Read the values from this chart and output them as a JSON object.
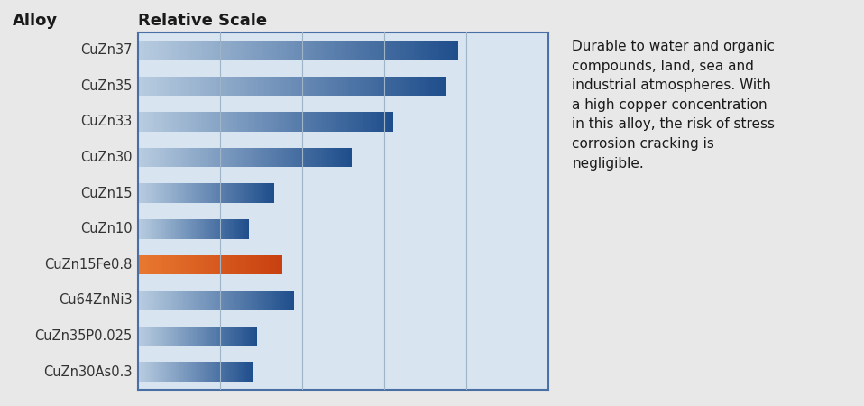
{
  "categories": [
    "CuZn37",
    "CuZn35",
    "CuZn33",
    "CuZn30",
    "CuZn15",
    "CuZn10",
    "CuZn15Fe0.8",
    "Cu64ZnNi3",
    "CuZn35P0.025",
    "CuZn30As0.3"
  ],
  "values": [
    78,
    75,
    62,
    52,
    33,
    27,
    35,
    38,
    29,
    28
  ],
  "bar_colors_left": [
    "#b8cce0",
    "#b8cce0",
    "#b8cce0",
    "#b8cce0",
    "#b8cce0",
    "#b8cce0",
    "#e87830",
    "#b8cce0",
    "#b8cce0",
    "#b8cce0"
  ],
  "bar_colors_right": [
    "#1f4e8c",
    "#1f4e8c",
    "#1f4e8c",
    "#1f4e8c",
    "#1f4e8c",
    "#1f4e8c",
    "#c84010",
    "#1f4e8c",
    "#1f4e8c",
    "#1f4e8c"
  ],
  "xlim": [
    0,
    100
  ],
  "x_gridlines": [
    20,
    40,
    60,
    80,
    100
  ],
  "background_color": "#d8e4ef",
  "outer_background": "#e8e8e8",
  "chart_border_color": "#4a6fa5",
  "alloy_label": "Alloy",
  "scale_label": "Relative Scale",
  "annotation": "Durable to water and organic\ncompounds, land, sea and\nindustrial atmospheres. With\na high copper concentration\nin this alloy, the risk of stress\ncorrosion cracking is\nnegligible.",
  "annotation_fontsize": 11,
  "label_fontsize": 13,
  "tick_fontsize": 10.5,
  "bar_height": 0.55
}
